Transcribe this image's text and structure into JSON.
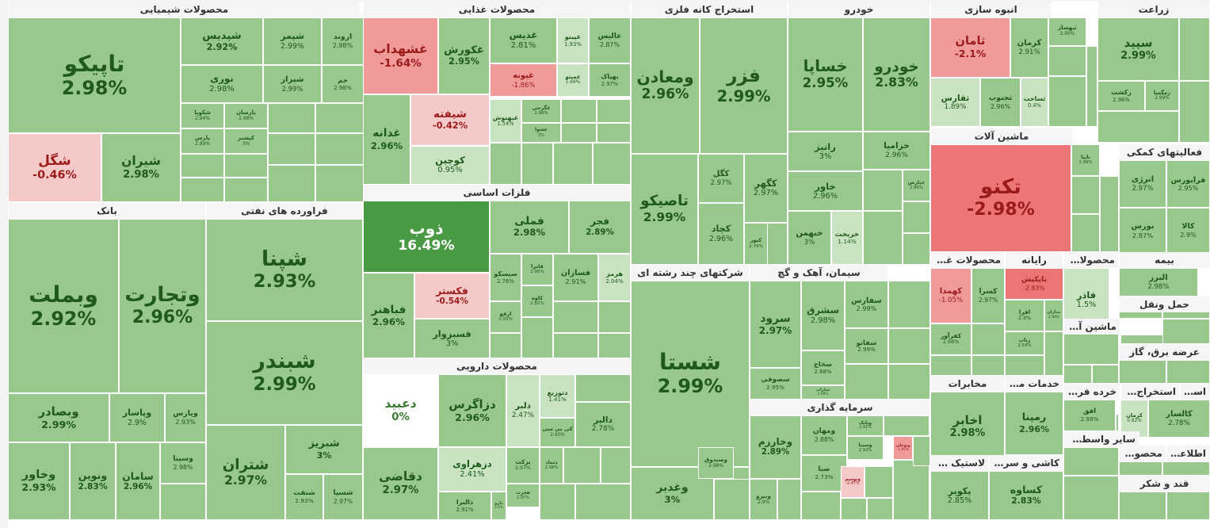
{
  "colors": {
    "up": "#98c88c",
    "up_light": "#c9e3c2",
    "up_strong": "#4a9a45",
    "neutral": "#ffffff",
    "down_light": "#f6c9c9",
    "down": "#f09a9a",
    "down_strong": "#ec7676",
    "text_up": "#1f5a1c",
    "text_down": "#9b1b1b",
    "text_neutral": "#3a7a33"
  },
  "chart_data": {
    "type": "treemap",
    "metric": "daily price change (%)",
    "sectors": [
      {
        "name": "محصولات شیمیایی",
        "tiles": [
          {
            "symbol": "تاپیکو",
            "change": "2.98%"
          },
          {
            "symbol": "شپدیس",
            "change": "2.92%"
          },
          {
            "symbol": "شپمر",
            "change": "2.99%"
          },
          {
            "symbol": "اروند",
            "change": "2.98%"
          },
          {
            "symbol": "نوری",
            "change": "2.98%"
          },
          {
            "symbol": "شیراز",
            "change": "2.99%"
          },
          {
            "symbol": "جم",
            "change": "2.98%"
          },
          {
            "symbol": "شگل",
            "change": "-0.46%"
          },
          {
            "symbol": "شیران",
            "change": "2.98%"
          },
          {
            "symbol": "شکوپا",
            "change": "2.94%"
          },
          {
            "symbol": "پارسان",
            "change": "2.98%"
          },
          {
            "symbol": "پارس",
            "change": "2.99%"
          },
          {
            "symbol": "کپشیر",
            "change": "3%"
          }
        ]
      },
      {
        "name": "محصولات غذایی",
        "tiles": [
          {
            "symbol": "غشهداب",
            "change": "-1.64%"
          },
          {
            "symbol": "غکورش",
            "change": "2.95%"
          },
          {
            "symbol": "غدیس",
            "change": "2.81%"
          },
          {
            "symbol": "غپینو",
            "change": "1.93%"
          },
          {
            "symbol": "عالیس",
            "change": "2.87%"
          },
          {
            "symbol": "غپونه",
            "change": "-1.86%"
          },
          {
            "symbol": "غمینو",
            "change": "1.69%"
          },
          {
            "symbol": "بهپاک",
            "change": "2.97%"
          },
          {
            "symbol": "شیفته",
            "change": "-0.42%"
          },
          {
            "symbol": "غدانه",
            "change": "2.96%"
          },
          {
            "symbol": "کوچین",
            "change": "0.95%"
          },
          {
            "symbol": "غگرجی",
            "change": "2.98%"
          },
          {
            "symbol": "غبهنوش",
            "change": "1.54%"
          },
          {
            "symbol": "غشوا",
            "change": "3%"
          }
        ]
      },
      {
        "name": "استخراج کانه فلزی",
        "tiles": [
          {
            "symbol": "ومعادن",
            "change": "2.96%"
          },
          {
            "symbol": "فزر",
            "change": "2.99%"
          },
          {
            "symbol": "تاصیکو",
            "change": "2.99%"
          },
          {
            "symbol": "کگل",
            "change": "2.97%"
          },
          {
            "symbol": "کچاد",
            "change": "2.96%"
          },
          {
            "symbol": "کگهر",
            "change": "2.97%"
          },
          {
            "symbol": "کنور",
            "change": "2.79%"
          }
        ]
      },
      {
        "name": "خودرو",
        "tiles": [
          {
            "symbol": "خساپا",
            "change": "2.95%"
          },
          {
            "symbol": "خودرو",
            "change": "2.83%"
          },
          {
            "symbol": "رانیز",
            "change": "3%"
          },
          {
            "symbol": "خزامیا",
            "change": "2.96%"
          },
          {
            "symbol": "خپارس",
            "change": "2.96%"
          },
          {
            "symbol": "خاور",
            "change": "2.96%"
          },
          {
            "symbol": "خبهمن",
            "change": "3%"
          },
          {
            "symbol": "خریخت",
            "change": "1.14%"
          }
        ]
      },
      {
        "name": "انبوه سازی",
        "tiles": [
          {
            "symbol": "ثامان",
            "change": "-2.1%"
          },
          {
            "symbol": "کرمان",
            "change": "2.91%"
          },
          {
            "symbol": "ثقارس",
            "change": "1.89%"
          },
          {
            "symbol": "ثجنوب",
            "change": "2.96%"
          },
          {
            "symbol": "ثساخت",
            "change": "0.4%"
          },
          {
            "symbol": "ثبهساز",
            "change": "2.99%"
          }
        ]
      },
      {
        "name": "زراعت",
        "tiles": [
          {
            "symbol": "سپید",
            "change": "2.99%"
          },
          {
            "symbol": "زکشت",
            "change": "2.96%"
          },
          {
            "symbol": "زمگسا",
            "change": "2.99%"
          }
        ]
      },
      {
        "name": "ماشین آلات",
        "tiles": [
          {
            "symbol": "تکنو",
            "change": "-2.98%"
          },
          {
            "symbol": "تاپیا",
            "change": "2.99%"
          }
        ]
      },
      {
        "name": "فعالیتهای کمکی",
        "tiles": [
          {
            "symbol": "انرژی",
            "change": "2.97%"
          },
          {
            "symbol": "فرابورس",
            "change": "2.95%"
          },
          {
            "symbol": "بورس",
            "change": "2.87%"
          },
          {
            "symbol": "کالا",
            "change": "2.9%"
          }
        ]
      },
      {
        "name": "بانک",
        "tiles": [
          {
            "symbol": "وبملت",
            "change": "2.92%"
          },
          {
            "symbol": "وتجارت",
            "change": "2.96%"
          },
          {
            "symbol": "وبصادر",
            "change": "2.99%"
          },
          {
            "symbol": "وپاسار",
            "change": "2.9%"
          },
          {
            "symbol": "وپارس",
            "change": "2.93%"
          },
          {
            "symbol": "وخاور",
            "change": "2.93%"
          },
          {
            "symbol": "ونوین",
            "change": "2.83%"
          },
          {
            "symbol": "سامان",
            "change": "2.96%"
          },
          {
            "symbol": "وسینا",
            "change": "2.98%"
          }
        ]
      },
      {
        "name": "فراورده های نفتی",
        "tiles": [
          {
            "symbol": "شپنا",
            "change": "2.93%"
          },
          {
            "symbol": "شبندر",
            "change": "2.99%"
          },
          {
            "symbol": "شتران",
            "change": "2.97%"
          },
          {
            "symbol": "شبریز",
            "change": "3%"
          },
          {
            "symbol": "شنفت",
            "change": "2.93%"
          },
          {
            "symbol": "شسپا",
            "change": "2.97%"
          }
        ]
      },
      {
        "name": "فلزات اساسی",
        "tiles": [
          {
            "symbol": "ذوب",
            "change": "16.49%"
          },
          {
            "symbol": "فملی",
            "change": "2.98%"
          },
          {
            "symbol": "فجر",
            "change": "2.89%"
          },
          {
            "symbol": "سیسکو",
            "change": "2.76%"
          },
          {
            "symbol": "فسازان",
            "change": "2.91%"
          },
          {
            "symbol": "فایرا",
            "change": "2.96%"
          },
          {
            "symbol": "هرمز",
            "change": "2.04%"
          },
          {
            "symbol": "فکستر",
            "change": "-0.54%"
          },
          {
            "symbol": "فباهنر",
            "change": "2.96%"
          },
          {
            "symbol": "فسبزوار",
            "change": "3%"
          },
          {
            "symbol": "ارفع",
            "change": "2.93%"
          },
          {
            "symbol": "کاوه",
            "change": "2.82%"
          }
        ]
      },
      {
        "name": "محصولات دارویی",
        "tiles": [
          {
            "symbol": "دعبید",
            "change": "0%"
          },
          {
            "symbol": "دزاگرس",
            "change": "2.96%"
          },
          {
            "symbol": "دتوزیع",
            "change": "1.41%"
          },
          {
            "symbol": "کی بی سی",
            "change": "2.95%"
          },
          {
            "symbol": "دلبر",
            "change": "2.47%"
          },
          {
            "symbol": "دالبر",
            "change": "2.78%"
          },
          {
            "symbol": "دزهراوی",
            "change": "2.41%"
          },
          {
            "symbol": "دقاضی",
            "change": "2.97%"
          },
          {
            "symbol": "دارو",
            "change": "2.9%"
          },
          {
            "symbol": "دالبرا",
            "change": "2.91%"
          },
          {
            "symbol": "برکت",
            "change": "2.97%"
          },
          {
            "symbol": "دتماد",
            "change": "2.98%"
          },
          {
            "symbol": "هجرت",
            "change": "2.97%"
          }
        ]
      },
      {
        "name": "شرکتهای چند رشته ای",
        "tiles": [
          {
            "symbol": "شستا",
            "change": "2.99%"
          },
          {
            "symbol": "وغدیر",
            "change": "3%"
          },
          {
            "symbol": "وصندوق",
            "change": "2.98%"
          }
        ]
      },
      {
        "name": "سیمان، آهک و گچ",
        "tiles": [
          {
            "symbol": "سرود",
            "change": "2.97%"
          },
          {
            "symbol": "سشرق",
            "change": "2.98%"
          },
          {
            "symbol": "سصوفی",
            "change": "2.95%"
          },
          {
            "symbol": "سخاچ",
            "change": "2.68%"
          },
          {
            "symbol": "ساراب",
            "change": "2.98%"
          },
          {
            "symbol": "سفارس",
            "change": "2.99%"
          },
          {
            "symbol": "سفانو",
            "change": "2.99%"
          }
        ]
      },
      {
        "name": "سرمایه گذاری",
        "tiles": [
          {
            "symbol": "وخارزم",
            "change": "2.89%"
          },
          {
            "symbol": "ومهان",
            "change": "2.88%"
          },
          {
            "symbol": "صبا",
            "change": "2.73%"
          },
          {
            "symbol": "وبانک",
            "change": "2.91%"
          },
          {
            "symbol": "وسینا",
            "change": "2.92%"
          },
          {
            "symbol": "ونیرو",
            "change": "2.9%"
          },
          {
            "symbol": "وبوعلی",
            "change": "-1.96%"
          },
          {
            "symbol": "وتوسم",
            "change": "-0.47%"
          }
        ]
      },
      {
        "name": "محصولات غیرف...",
        "tiles": [
          {
            "symbol": "کهمدا",
            "change": "-1.05%"
          },
          {
            "symbol": "کسرا",
            "change": "2.97%"
          },
          {
            "symbol": "کفرآور",
            "change": "2.98%"
          }
        ]
      },
      {
        "name": "رایانه",
        "tiles": [
          {
            "symbol": "تاپکیش",
            "change": "-2.83%"
          },
          {
            "symbol": "افرا",
            "change": "2.9%"
          },
          {
            "symbol": "رتاپ",
            "change": "2.54%"
          },
          {
            "symbol": "مداران",
            "change": "2.94%"
          }
        ]
      },
      {
        "name": "محصولات ف...",
        "tiles": [
          {
            "symbol": "فاذر",
            "change": "1.5%"
          }
        ]
      },
      {
        "name": "بیمه",
        "tiles": [
          {
            "symbol": "البرز",
            "change": "2.98%"
          }
        ]
      },
      {
        "name": "حمل ونقل",
        "tiles": []
      },
      {
        "name": "ماشین آلات ...",
        "tiles": []
      },
      {
        "name": "عرضه برق، گاز",
        "tiles": []
      },
      {
        "name": "استخراج ...",
        "tiles": []
      },
      {
        "name": "مخابرات",
        "tiles": [
          {
            "symbol": "اخابر",
            "change": "2.98%"
          }
        ]
      },
      {
        "name": "خدمات مه...",
        "tiles": [
          {
            "symbol": "رمپنا",
            "change": "2.96%"
          }
        ]
      },
      {
        "name": "خرده فروشی",
        "tiles": [
          {
            "symbol": "افق",
            "change": "2.99%"
          }
        ]
      },
      {
        "name": "استخراج ز...",
        "tiles": [
          {
            "symbol": "کرمان",
            "change": "0.82%"
          },
          {
            "symbol": "کالسار",
            "change": "2.78%"
          }
        ]
      },
      {
        "name": "سایر واسطه گری...",
        "tiles": []
      },
      {
        "name": "کاشی و سرام...",
        "tiles": [
          {
            "symbol": "کساوه",
            "change": "2.83%"
          }
        ]
      },
      {
        "name": "لاستیک و پلا...",
        "tiles": [
          {
            "symbol": "پکویر",
            "change": "2.85%"
          }
        ]
      },
      {
        "name": "اطلاعات و...",
        "tiles": []
      },
      {
        "name": "محصولات...",
        "tiles": []
      },
      {
        "name": "قند و شکر",
        "tiles": []
      }
    ]
  }
}
